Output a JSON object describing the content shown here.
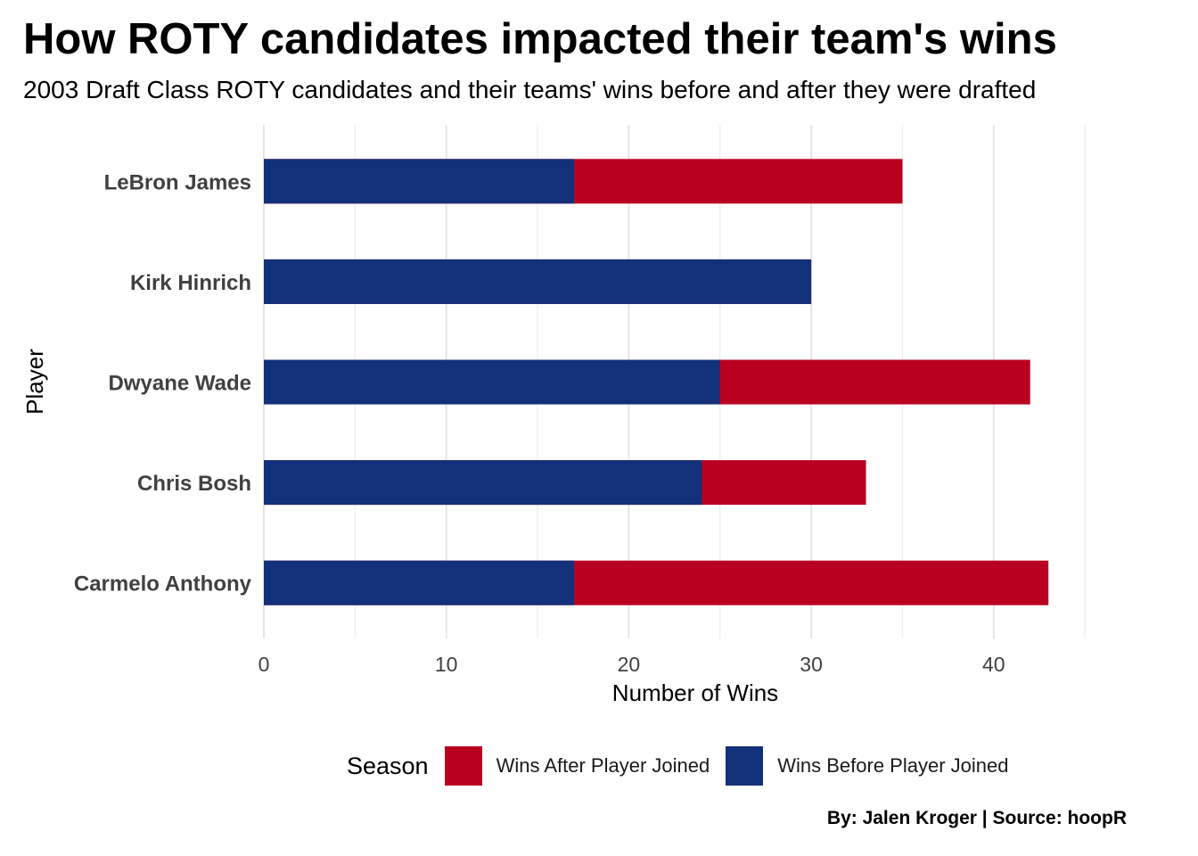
{
  "title": "How ROTY candidates impacted their team's wins",
  "subtitle": "2003 Draft Class ROTY candidates and their teams' wins before and after they were drafted",
  "caption": "By: Jalen Kroger | Source: hoopR",
  "legend": {
    "title": "Season",
    "items": [
      {
        "label": "Wins After Player Joined",
        "color": "#ba0021"
      },
      {
        "label": "Wins Before Player Joined",
        "color": "#13307a"
      }
    ]
  },
  "chart_data": {
    "type": "bar",
    "orientation": "horizontal",
    "stacking": "overlay",
    "title": "How ROTY candidates impacted their team's wins",
    "subtitle": "2003 Draft Class ROTY candidates and their teams' wins before and after they were drafted",
    "xlabel": "Number of Wins",
    "ylabel": "Player",
    "xlim": [
      0,
      45
    ],
    "xticks": [
      0,
      10,
      20,
      30,
      40
    ],
    "grid": true,
    "legend_position": "bottom",
    "categories": [
      "LeBron James",
      "Kirk Hinrich",
      "Dwyane Wade",
      "Chris Bosh",
      "Carmelo Anthony"
    ],
    "series": [
      {
        "name": "Wins After Player Joined",
        "color": "#ba0021",
        "values": [
          35,
          30,
          42,
          33,
          43
        ]
      },
      {
        "name": "Wins Before Player Joined",
        "color": "#13307a",
        "values": [
          17,
          30,
          25,
          24,
          17
        ]
      }
    ]
  }
}
